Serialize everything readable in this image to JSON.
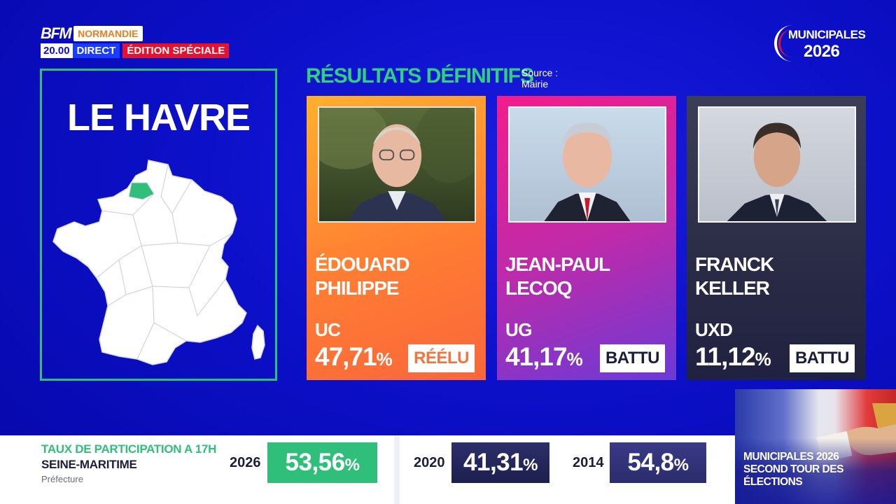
{
  "channel": {
    "brand": "BFM",
    "region": "NORMANDIE",
    "time": "20.00",
    "direct": "DIRECT",
    "special": "ÉDITION SPÉCIALE"
  },
  "election_logo": {
    "line1": "MUNICIPALES",
    "line2": "2026"
  },
  "city": {
    "name": "LE HAVRE",
    "map_icon": "france-map-icon",
    "highlight_color": "#2fbf7a"
  },
  "results": {
    "title": "RÉSULTATS DÉFINITIFS",
    "source_label": "Source :",
    "source_value": "Mairie",
    "candidates": [
      {
        "name": "ÉDOUARD\nPHILIPPE",
        "party": "UC",
        "score": "47,71",
        "pct": "%",
        "status": "RÉÉLU"
      },
      {
        "name": "JEAN-PAUL\nLECOQ",
        "party": "UG",
        "score": "41,17",
        "pct": "%",
        "status": "BATTU"
      },
      {
        "name": "FRANCK\nKELLER",
        "party": "UXD",
        "score": "11,12",
        "pct": "%",
        "status": "BATTU"
      }
    ]
  },
  "participation": {
    "label": "TAUX DE PARTICIPATION A 17H",
    "region": "SEINE-MARITIME",
    "source": "Préfecture",
    "years": [
      {
        "year": "2026",
        "rate": "53,56",
        "pct": "%"
      },
      {
        "year": "2020",
        "rate": "41,31",
        "pct": "%"
      },
      {
        "year": "2014",
        "rate": "54,8",
        "pct": "%"
      }
    ]
  },
  "promo": {
    "text": "MUNICIPALES 2026\nSECOND TOUR DES\nÉLECTIONS"
  },
  "colors": {
    "accent_green": "#2fbf7a",
    "background_blue": "#0c10c8",
    "status_red": "#e8112d"
  }
}
